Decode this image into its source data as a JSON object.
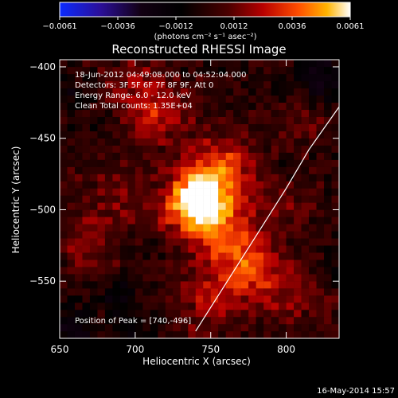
{
  "chart_data": {
    "type": "heatmap",
    "title": "Reconstructed RHESSI Image",
    "xlabel": "Heliocentric X (arcsec)",
    "ylabel": "Heliocentric Y (arcsec)",
    "xlim": [
      650,
      835
    ],
    "ylim": [
      -590,
      -395
    ],
    "xticks": [
      650,
      700,
      750,
      800
    ],
    "yticks": [
      -550,
      -500,
      -450,
      -400
    ],
    "info_lines": [
      "18-Jun-2012 04:49:08.000 to 04:52:04.000",
      "Detectors: 3F 5F 6F 7F 8F 9F, Att 0",
      "Energy Range: 6.0 - 12.0 keV",
      "Clean     Total counts: 1.35E+04"
    ],
    "peak_text": "Position of Peak = [740,-496]",
    "peak": [
      740,
      -496
    ],
    "timestamp": "16-May-2014 15:57",
    "colorbar": {
      "min": -0.0061,
      "max": 0.0061,
      "ticks": [
        "-0.0061",
        "-0.0036",
        "-0.0012",
        "0.0012",
        "0.0036",
        "0.0061"
      ],
      "unit_label": "(photons cm⁻² s⁻¹ asec⁻²)",
      "colors": [
        "#0b2bff",
        "#2b0f99",
        "#120012",
        "#000000",
        "#4b0000",
        "#b70000",
        "#ff4d00",
        "#ffb400",
        "#ffffff"
      ]
    },
    "limb_curve": {
      "points": [
        [
          835,
          -428
        ],
        [
          815,
          -458
        ],
        [
          800,
          -485
        ],
        [
          785,
          -510
        ],
        [
          770,
          -535
        ],
        [
          755,
          -560
        ],
        [
          740,
          -585
        ]
      ]
    },
    "sources": [
      {
        "x": 740,
        "y": -496,
        "sigma": 14,
        "amp": 0.0061
      },
      {
        "x": 742,
        "y": -490,
        "sigma": 8,
        "amp": 0.0018
      },
      {
        "x": 757,
        "y": -472,
        "sigma": 16,
        "amp": 0.0036
      },
      {
        "x": 762,
        "y": -520,
        "sigma": 18,
        "amp": 0.003
      },
      {
        "x": 777,
        "y": -545,
        "sigma": 15,
        "amp": 0.0026
      },
      {
        "x": 715,
        "y": -433,
        "sigma": 15,
        "amp": 0.0026
      },
      {
        "x": 700,
        "y": -410,
        "sigma": 12,
        "amp": 0.0016
      },
      {
        "x": 688,
        "y": -490,
        "sigma": 18,
        "amp": 0.0014
      },
      {
        "x": 669,
        "y": -528,
        "sigma": 14,
        "amp": 0.0015
      },
      {
        "x": 748,
        "y": -566,
        "sigma": 16,
        "amp": 0.0018
      },
      {
        "x": 811,
        "y": -440,
        "sigma": 11,
        "amp": 0.0012
      },
      {
        "x": 808,
        "y": -560,
        "sigma": 16,
        "amp": 0.0014
      },
      {
        "x": 806,
        "y": -495,
        "sigma": 13,
        "amp": 0.001
      },
      {
        "x": 823,
        "y": -408,
        "sigma": 10,
        "amp": -0.0024
      },
      {
        "x": 660,
        "y": -584,
        "sigma": 10,
        "amp": -0.002
      },
      {
        "x": 690,
        "y": -561,
        "sigma": 9,
        "amp": -0.0016
      },
      {
        "x": 701,
        "y": -585,
        "sigma": 10,
        "amp": -0.0012
      },
      {
        "x": 831,
        "y": -542,
        "sigma": 8,
        "amp": -0.0015
      },
      {
        "x": 661,
        "y": -420,
        "sigma": 8,
        "amp": -0.0011
      }
    ],
    "grid": false
  }
}
